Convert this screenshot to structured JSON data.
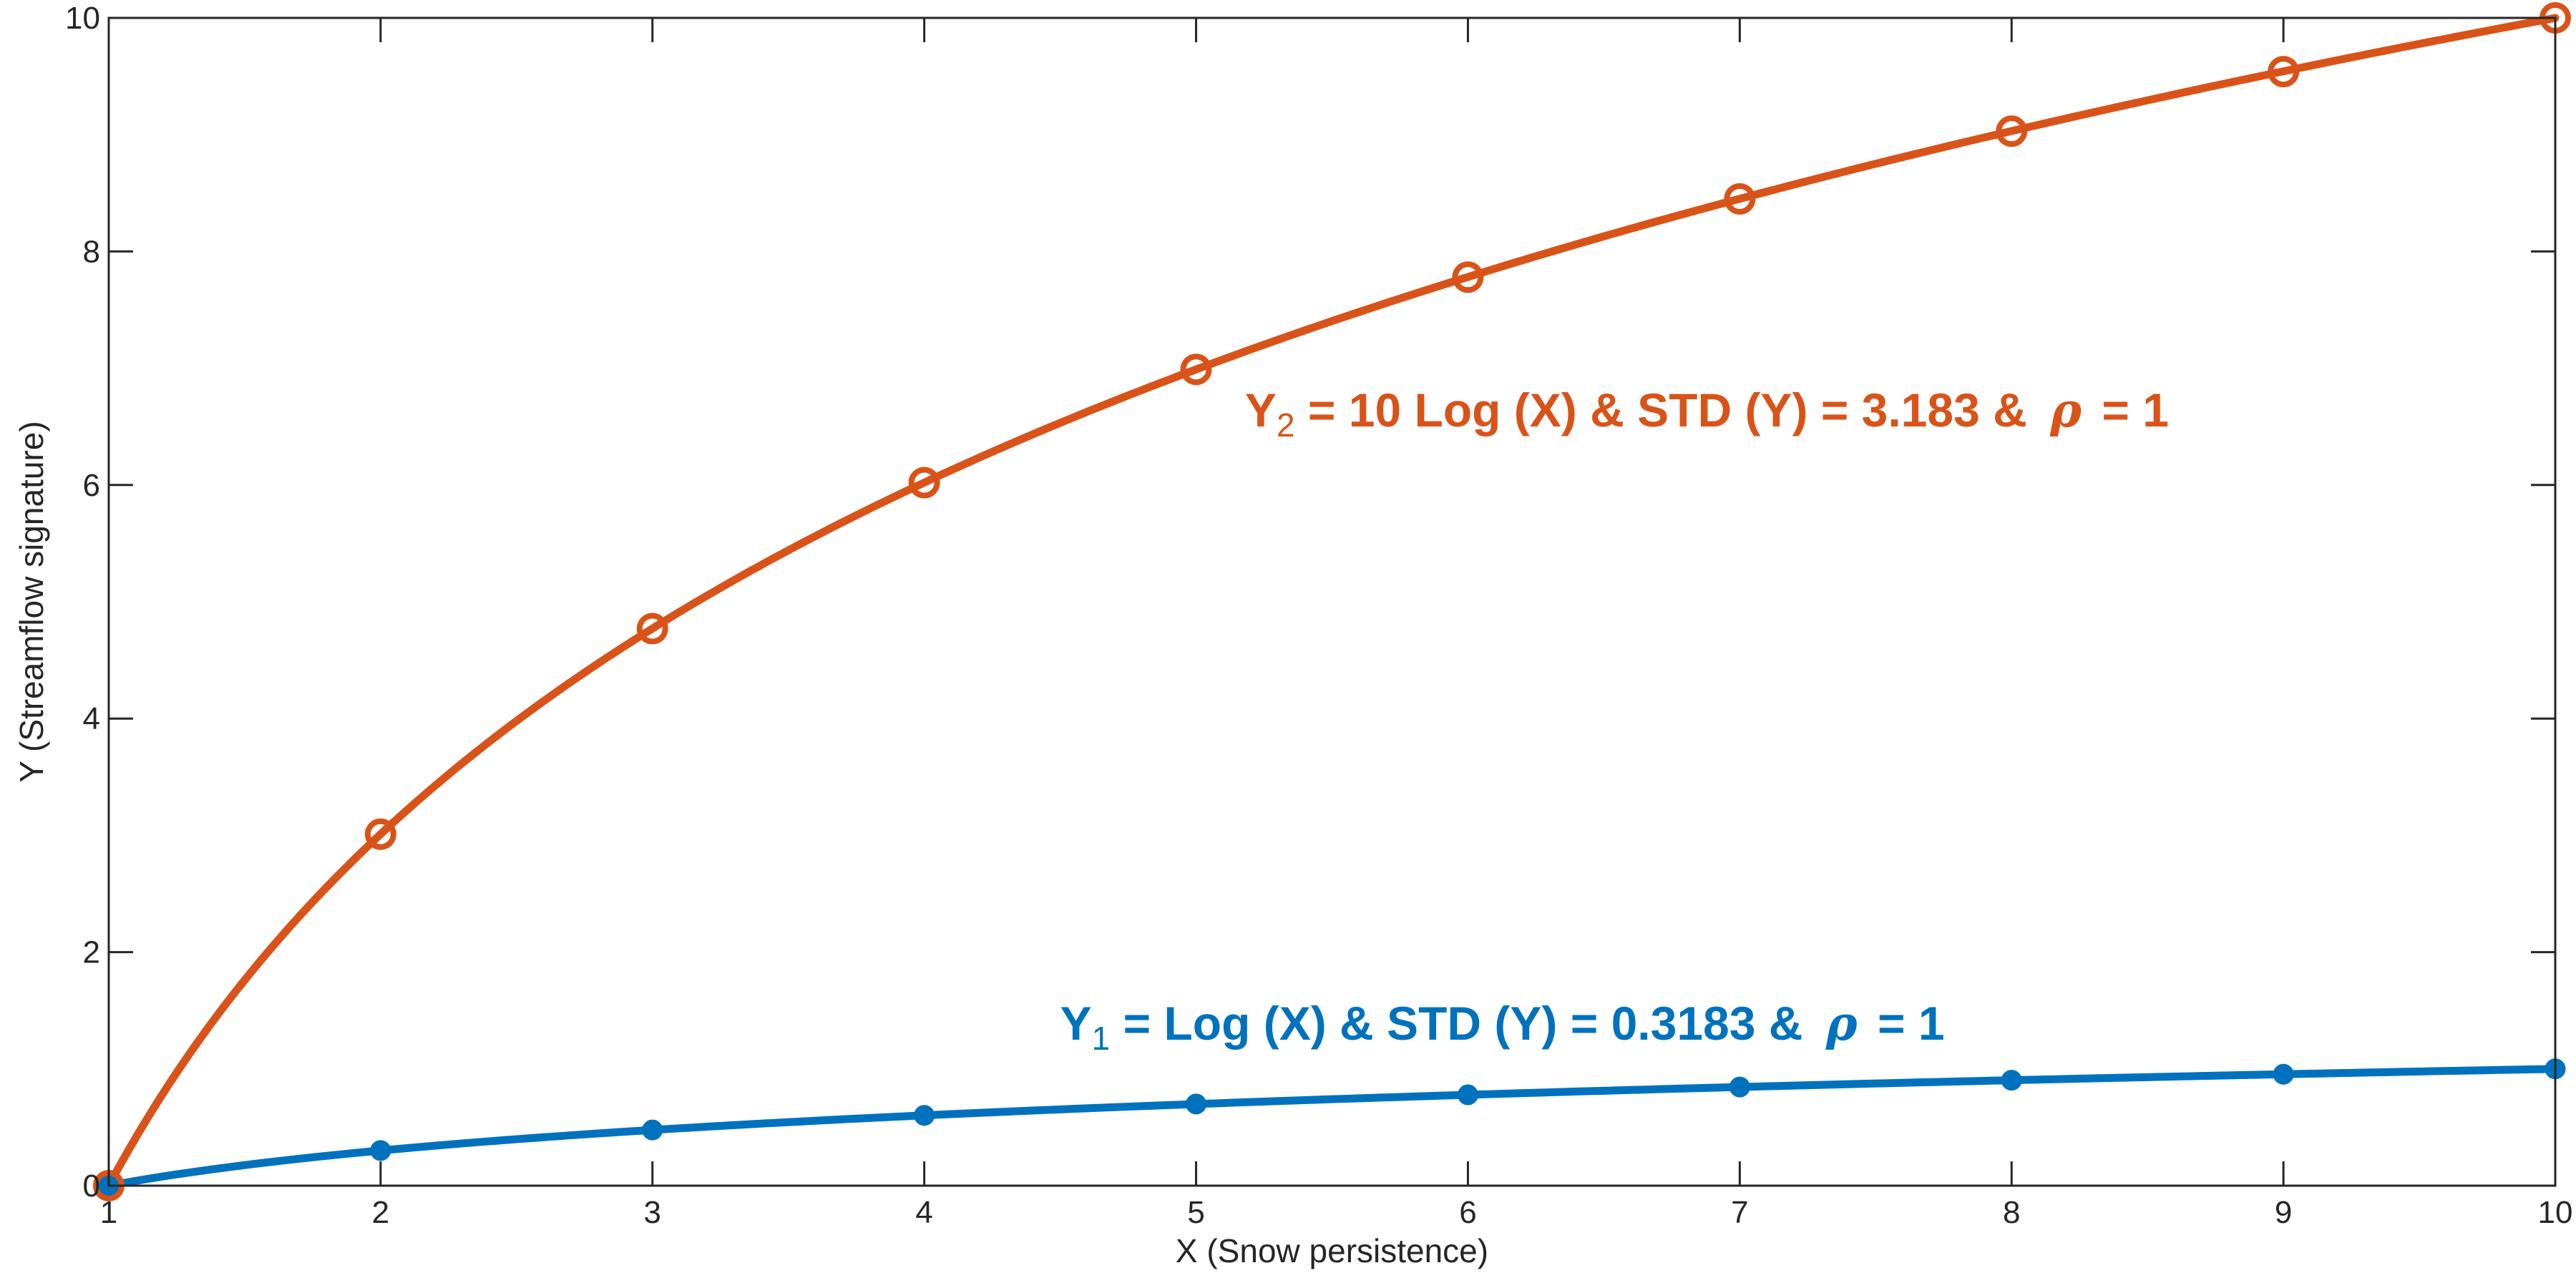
{
  "chart_data": {
    "type": "line",
    "xlabel": "X (Snow persistence)",
    "ylabel": "Y (Streamflow signature)",
    "xlim": [
      1,
      10
    ],
    "ylim": [
      0,
      10
    ],
    "x_ticks": [
      1,
      2,
      3,
      4,
      5,
      6,
      7,
      8,
      9,
      10
    ],
    "y_ticks": [
      0,
      2,
      4,
      6,
      8,
      10
    ],
    "grid": false,
    "box": true,
    "x": [
      1,
      2,
      3,
      4,
      5,
      6,
      7,
      8,
      9,
      10
    ],
    "series": [
      {
        "key": "y1",
        "color": "#0072BD",
        "marker": "filled-circle",
        "values": [
          0,
          0.301,
          0.477,
          0.602,
          0.699,
          0.778,
          0.845,
          0.903,
          0.954,
          1.0
        ]
      },
      {
        "key": "y2",
        "color": "#D95319",
        "marker": "open-circle",
        "values": [
          0,
          3.01,
          4.77,
          6.02,
          6.99,
          7.78,
          8.45,
          9.03,
          9.54,
          10.0
        ]
      }
    ],
    "annotations": [
      {
        "series": "y1",
        "color": "#0072BD",
        "var": "Y",
        "sub": "1",
        "formula": " = Log (X) & STD (Y) = 0.3183 & ",
        "symbol": "ρ",
        "tail": " = 1",
        "anchor_x": 4.5,
        "anchor_y": 1.25
      },
      {
        "series": "y2",
        "color": "#D95319",
        "var": "Y",
        "sub": "2",
        "formula": " = 10 Log (X) & STD (Y) = 3.183 & ",
        "symbol": "ρ",
        "tail": " = 1",
        "anchor_x": 5.18,
        "anchor_y": 6.5
      }
    ]
  }
}
